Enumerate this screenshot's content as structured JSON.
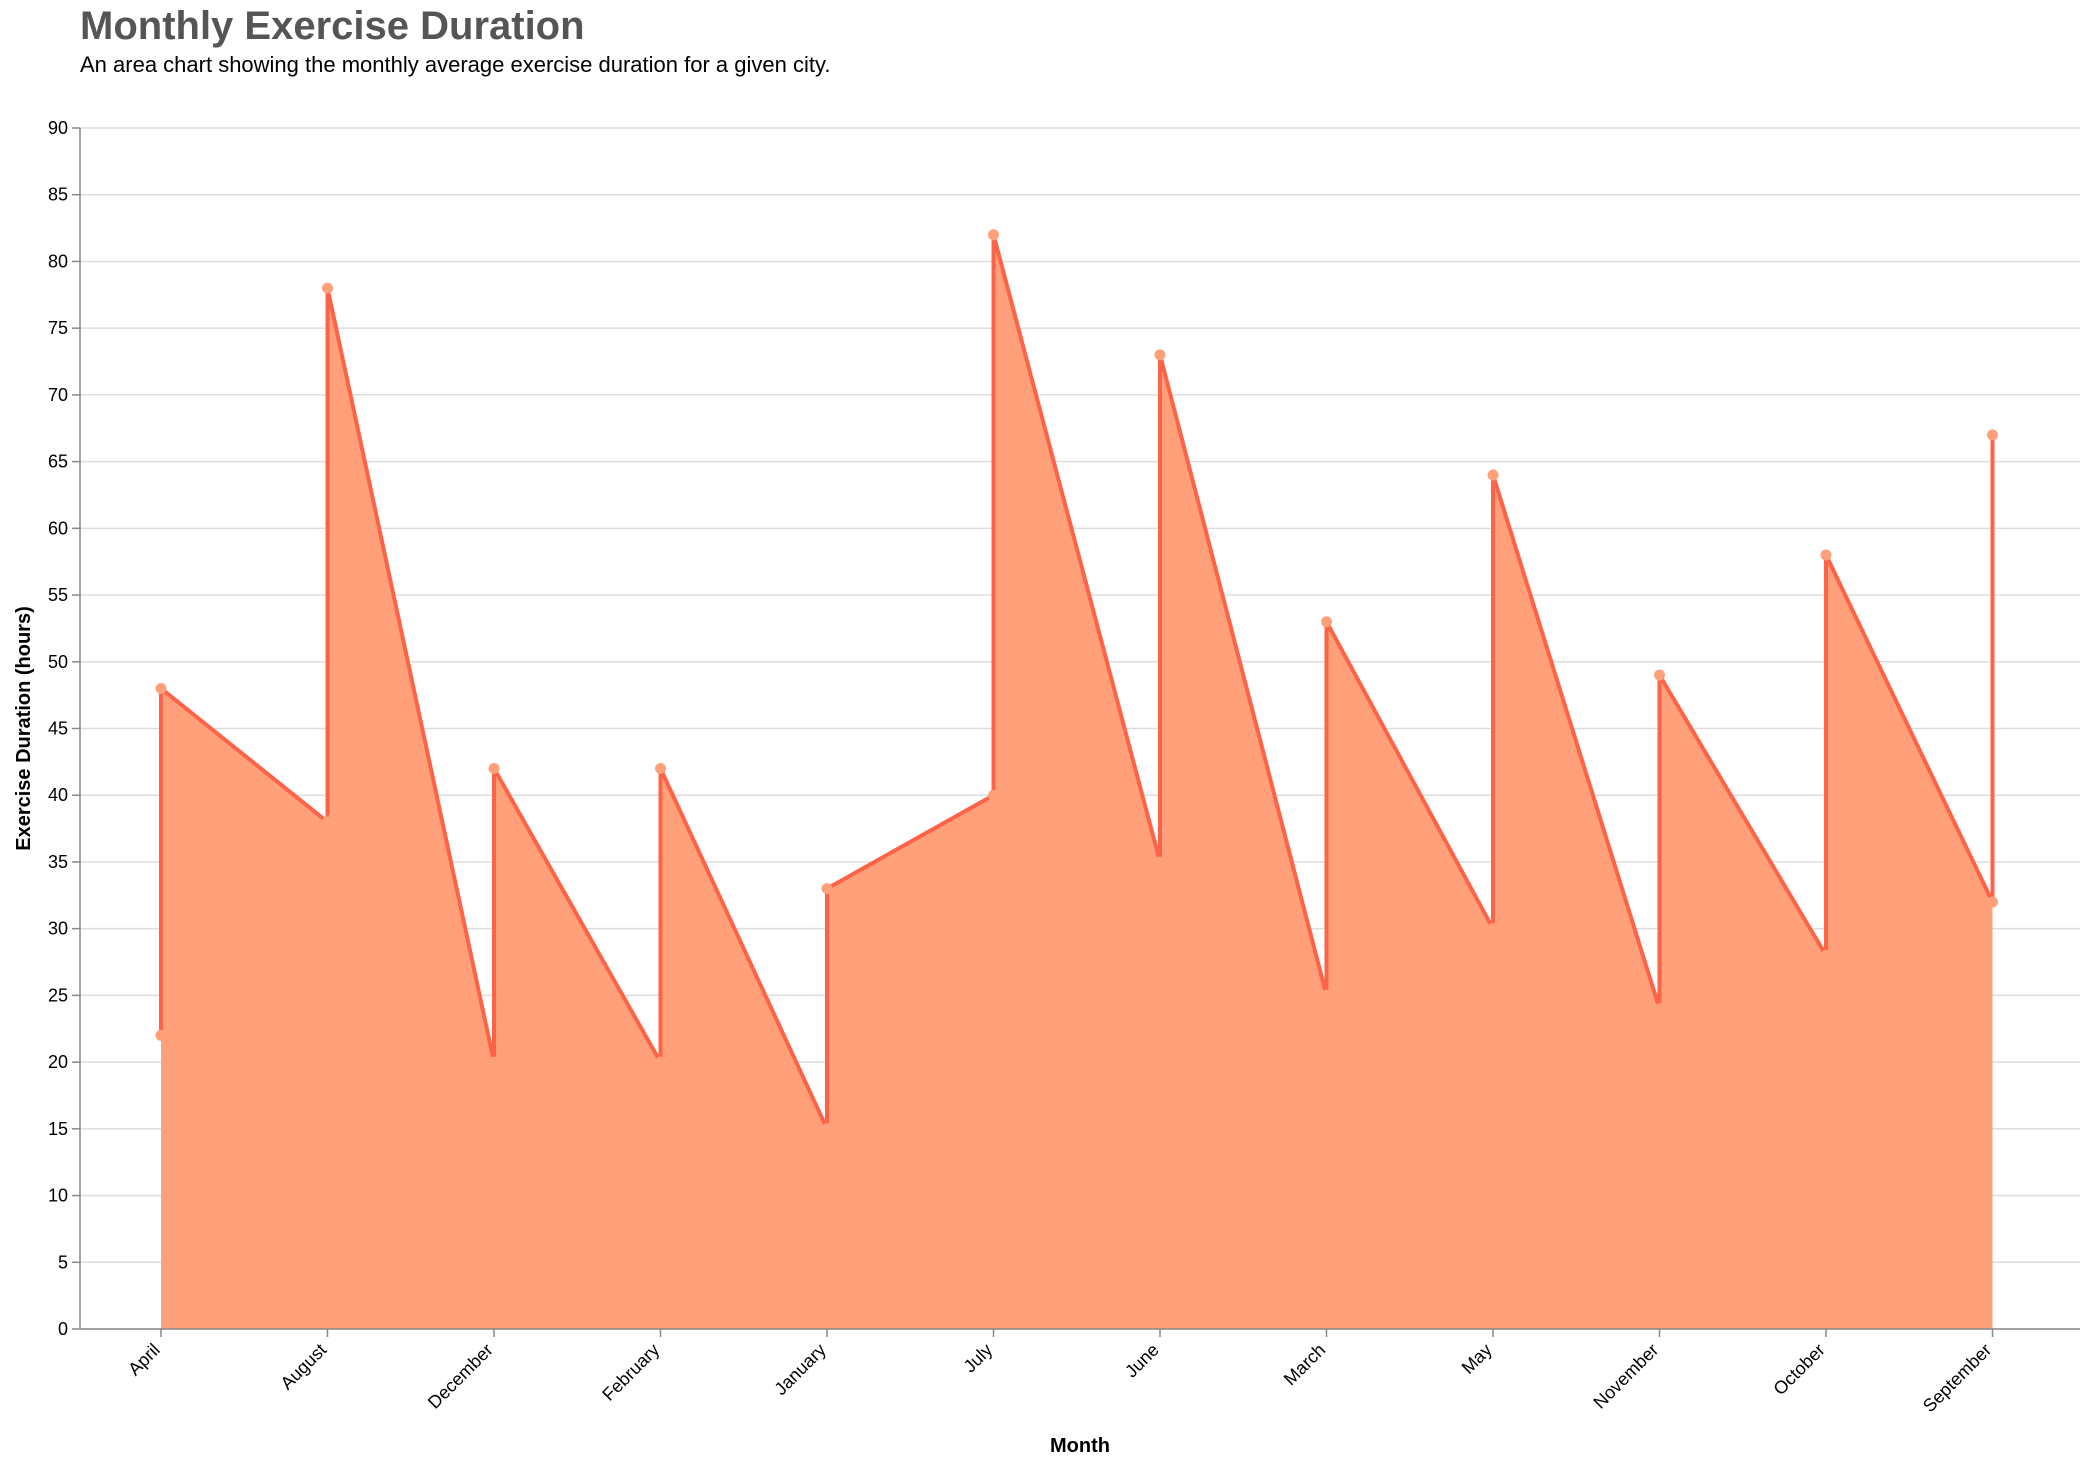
{
  "chart_data": {
    "type": "area",
    "title": "Monthly Exercise Duration",
    "subtitle": "An area chart showing the monthly average exercise duration for a given city.",
    "xlabel": "Month",
    "ylabel": "Exercise Duration (hours)",
    "ylim": [
      0,
      90
    ],
    "yticks": [
      0,
      5,
      10,
      15,
      20,
      25,
      30,
      35,
      40,
      45,
      50,
      55,
      60,
      65,
      70,
      75,
      80,
      85,
      90
    ],
    "categories": [
      "April",
      "August",
      "December",
      "February",
      "January",
      "July",
      "June",
      "March",
      "May",
      "November",
      "October",
      "September"
    ],
    "points": [
      {
        "month": "April",
        "values": [
          22,
          48
        ]
      },
      {
        "month": "August",
        "values": [
          38,
          78
        ]
      },
      {
        "month": "December",
        "values": [
          20,
          42
        ]
      },
      {
        "month": "February",
        "values": [
          20,
          42
        ]
      },
      {
        "month": "January",
        "values": [
          15,
          33
        ]
      },
      {
        "month": "July",
        "values": [
          40,
          82
        ]
      },
      {
        "month": "June",
        "values": [
          35,
          73
        ]
      },
      {
        "month": "March",
        "values": [
          25,
          53
        ]
      },
      {
        "month": "May",
        "values": [
          30,
          64
        ]
      },
      {
        "month": "November",
        "values": [
          24,
          49
        ]
      },
      {
        "month": "October",
        "values": [
          28,
          58
        ]
      },
      {
        "month": "September",
        "values": [
          32,
          67
        ]
      }
    ],
    "grid": true,
    "colors": {
      "area": "#FFA07A",
      "line": "#FF6347",
      "point": "#FFA07A",
      "grid": "#dddddd",
      "axis": "#888888"
    }
  }
}
